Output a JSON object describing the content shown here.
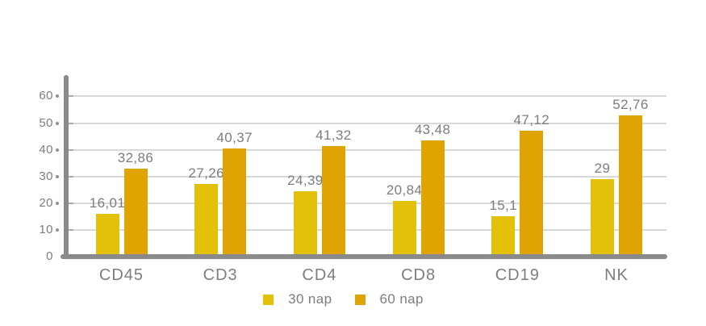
{
  "chart_data": {
    "type": "bar",
    "title": "",
    "xlabel": "",
    "ylabel": "",
    "categories": [
      "CD45",
      "CD3",
      "CD4",
      "CD8",
      "CD19",
      "NK"
    ],
    "series": [
      {
        "name": "30 nap",
        "color": "#e4c109",
        "values": [
          16.01,
          27.26,
          24.39,
          20.84,
          15.1,
          29
        ],
        "labels": [
          "16,01",
          "27,26",
          "24,39",
          "20,84",
          "15,1",
          "29"
        ]
      },
      {
        "name": "60 nap",
        "color": "#dfa402",
        "values": [
          32.86,
          40.37,
          41.32,
          43.48,
          47.12,
          52.76
        ],
        "labels": [
          "32,86",
          "40,37",
          "41,32",
          "43,48",
          "47,12",
          "52,76"
        ]
      }
    ],
    "y_ticks": [
      0,
      10,
      20,
      30,
      40,
      50,
      60
    ],
    "ylim": [
      0,
      60
    ],
    "grid": true,
    "legend_position": "bottom"
  },
  "colors": {
    "series_30nap": "#e4c109",
    "series_60nap": "#dfa402",
    "text": "#7d7d7d",
    "axis": "#8a8a8a",
    "gridline": "#d9d9d9",
    "background": "#ffffff"
  }
}
